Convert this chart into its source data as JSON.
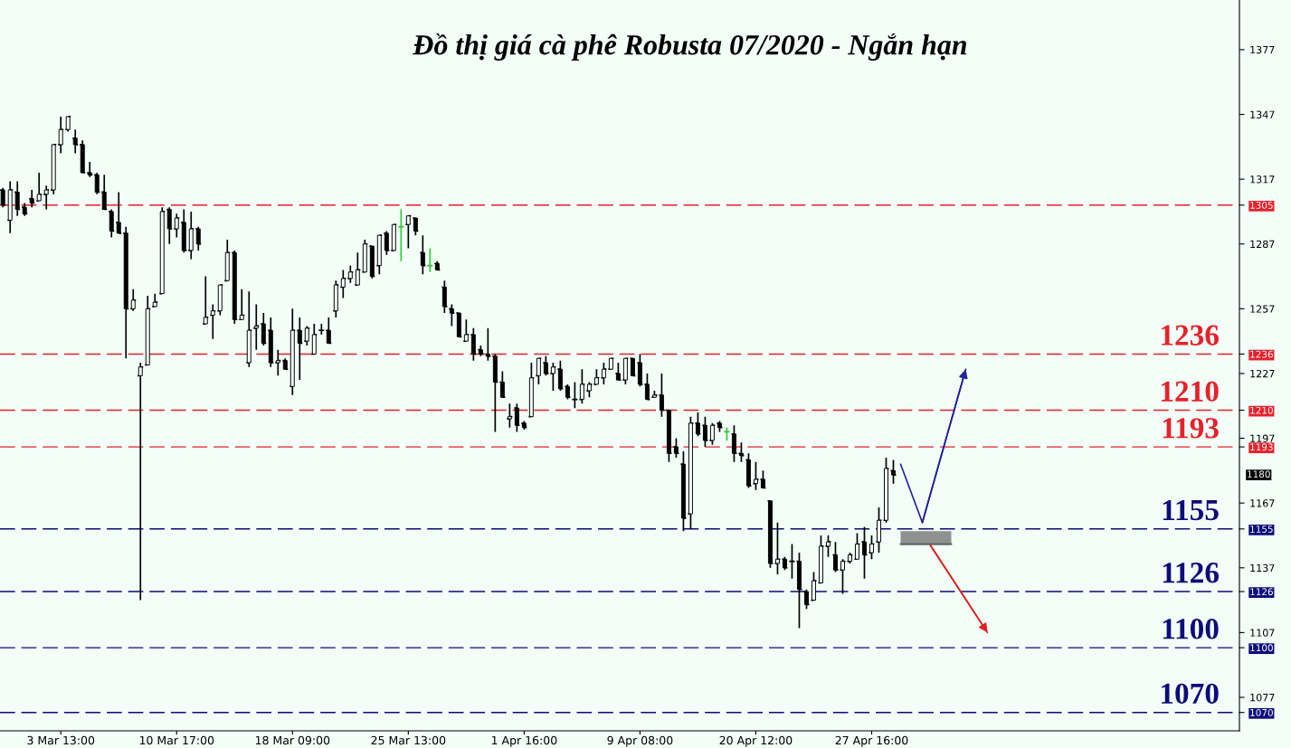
{
  "chart_data": {
    "type": "candlestick",
    "title": "Đồ thị giá cà phê Robusta 07/2020 - Ngắn hạn",
    "categories": [
      null,
      null,
      null,
      null,
      null,
      null,
      null,
      null,
      "3 Mar 13:00",
      null,
      null,
      null,
      null,
      null,
      null,
      null,
      null,
      null,
      null,
      null,
      null,
      null,
      null,
      null,
      "10 Mar 17:00",
      null,
      null,
      null,
      null,
      null,
      null,
      null,
      null,
      null,
      null,
      null,
      null,
      null,
      null,
      null,
      "18 Mar 09:00",
      null,
      null,
      null,
      null,
      null,
      null,
      null,
      null,
      null,
      null,
      null,
      null,
      null,
      null,
      null,
      "25 Mar 13:00",
      null,
      null,
      null,
      null,
      null,
      null,
      null,
      null,
      null,
      null,
      null,
      null,
      null,
      null,
      null,
      "1 Apr 16:00",
      null,
      null,
      null,
      null,
      null,
      null,
      null,
      null,
      null,
      null,
      null,
      null,
      null,
      null,
      null,
      "9 Apr 08:00",
      null,
      null,
      null,
      null,
      null,
      null,
      null,
      null,
      null,
      null,
      null,
      null,
      null,
      null,
      null,
      "20 Apr 12:00",
      null,
      null,
      null,
      null,
      null,
      null,
      null,
      null,
      null,
      null,
      null,
      null,
      null,
      null,
      null,
      "27 Apr 16:00",
      null,
      null,
      null,
      null,
      null,
      null,
      null,
      null,
      null,
      null,
      null,
      null,
      null,
      null,
      null,
      null,
      null,
      null,
      null,
      null,
      null,
      null,
      null,
      null,
      null,
      null,
      null,
      null,
      null,
      null,
      null,
      null,
      null,
      null,
      null,
      null,
      null,
      null,
      null,
      null,
      null,
      null,
      null,
      null,
      null,
      null,
      null,
      null,
      null,
      null
    ],
    "ohlc": [
      [
        1312,
        1313,
        1304,
        1305
      ],
      [
        1298,
        1316,
        1292,
        1312
      ],
      [
        1311,
        1316,
        1300,
        1303
      ],
      [
        1304,
        1306,
        1300,
        1301
      ],
      [
        1308,
        1312,
        1304,
        1306
      ],
      [
        1307,
        1320,
        1307,
        1310
      ],
      [
        1310,
        1314,
        1303,
        1312
      ],
      [
        1312,
        1333,
        1310,
        1333
      ],
      [
        1333,
        1346,
        1329,
        1340
      ],
      [
        1340,
        1346,
        1339,
        1346
      ],
      [
        1336,
        1340,
        1329,
        1333
      ],
      [
        1333,
        1335,
        1320,
        1320
      ],
      [
        1320,
        1325,
        1318,
        1319
      ],
      [
        1319,
        1320,
        1310,
        1311
      ],
      [
        1311,
        1319,
        1303,
        1303
      ],
      [
        1302,
        1303,
        1290,
        1293
      ],
      [
        1297,
        1311,
        1292,
        1292
      ],
      [
        1292,
        1295,
        1234,
        1257
      ],
      [
        1257,
        1266,
        1256,
        1261
      ],
      [
        1226,
        1232,
        1122,
        1230
      ],
      [
        1231,
        1263,
        1231,
        1257
      ],
      [
        1258,
        1264,
        1258,
        1260
      ],
      [
        1264,
        1304,
        1264,
        1302
      ],
      [
        1303,
        1304,
        1287,
        1294
      ],
      [
        1294,
        1301,
        1290,
        1299
      ],
      [
        1297,
        1303,
        1283,
        1284
      ],
      [
        1284,
        1302,
        1280,
        1294
      ],
      [
        1294,
        1295,
        1284,
        1287
      ],
      [
        1250,
        1272,
        1250,
        1253
      ],
      [
        1254,
        1259,
        1243,
        1256
      ],
      [
        1256,
        1268,
        1254,
        1268
      ],
      [
        1270,
        1289,
        1270,
        1283
      ],
      [
        1283,
        1284,
        1250,
        1252
      ],
      [
        1252,
        1266,
        1252,
        1254
      ],
      [
        1232,
        1265,
        1230,
        1247
      ],
      [
        1248,
        1259,
        1238,
        1249
      ],
      [
        1250,
        1255,
        1240,
        1241
      ],
      [
        1247,
        1253,
        1230,
        1232
      ],
      [
        1232,
        1238,
        1226,
        1233
      ],
      [
        1233,
        1234,
        1229,
        1229
      ],
      [
        1221,
        1257,
        1217,
        1247
      ],
      [
        1247,
        1253,
        1224,
        1241
      ],
      [
        1242,
        1249,
        1240,
        1248
      ],
      [
        1236,
        1250,
        1236,
        1245
      ],
      [
        1247,
        1250,
        1245,
        1247
      ],
      [
        1247,
        1253,
        1241,
        1241
      ],
      [
        1256,
        1270,
        1253,
        1268
      ],
      [
        1267,
        1275,
        1262,
        1271
      ],
      [
        1271,
        1277,
        1269,
        1274
      ],
      [
        1268,
        1283,
        1268,
        1275
      ],
      [
        1274,
        1289,
        1274,
        1287
      ],
      [
        1286,
        1286,
        1271,
        1272
      ],
      [
        1277,
        1291,
        1273,
        1291
      ],
      [
        1292,
        1293,
        1282,
        1284
      ],
      [
        1284,
        1296,
        1284,
        1296
      ],
      [
        1295,
        1303,
        1279,
        1295
      ],
      [
        1296,
        1300,
        1285,
        1300
      ],
      [
        1299,
        1299,
        1291,
        1293
      ],
      [
        1283,
        1291,
        1273,
        1277
      ],
      [
        1277,
        1285,
        1274,
        1277
      ],
      [
        1278,
        1279,
        1275,
        1275
      ],
      [
        1267,
        1270,
        1255,
        1258
      ],
      [
        1257,
        1259,
        1249,
        1255
      ],
      [
        1255,
        1255,
        1244,
        1244
      ],
      [
        1242,
        1252,
        1242,
        1245
      ],
      [
        1245,
        1248,
        1233,
        1236
      ],
      [
        1238,
        1240,
        1235,
        1236
      ],
      [
        1236,
        1248,
        1233,
        1235
      ],
      [
        1235,
        1236,
        1200,
        1223
      ],
      [
        1223,
        1228,
        1216,
        1216
      ],
      [
        1206,
        1213,
        1202,
        1207
      ],
      [
        1211,
        1213,
        1200,
        1203
      ],
      [
        1204,
        1205,
        1201,
        1202
      ],
      [
        1207,
        1232,
        1207,
        1225
      ],
      [
        1226,
        1234,
        1222,
        1234
      ],
      [
        1232,
        1235,
        1226,
        1227
      ],
      [
        1227,
        1232,
        1219,
        1230
      ],
      [
        1229,
        1233,
        1219,
        1220
      ],
      [
        1221,
        1222,
        1215,
        1216
      ],
      [
        1215,
        1223,
        1211,
        1215
      ],
      [
        1215,
        1229,
        1213,
        1222
      ],
      [
        1219,
        1223,
        1216,
        1222
      ],
      [
        1222,
        1229,
        1222,
        1225
      ],
      [
        1225,
        1232,
        1222,
        1229
      ],
      [
        1229,
        1234,
        1229,
        1234
      ],
      [
        1227,
        1232,
        1224,
        1224
      ],
      [
        1224,
        1234,
        1222,
        1234
      ],
      [
        1234,
        1234,
        1226,
        1226
      ],
      [
        1232,
        1236,
        1221,
        1222
      ],
      [
        1222,
        1227,
        1215,
        1215
      ],
      [
        1216,
        1219,
        1216,
        1217
      ],
      [
        1217,
        1227,
        1207,
        1210
      ],
      [
        1210,
        1210,
        1186,
        1190
      ],
      [
        1193,
        1197,
        1188,
        1190
      ],
      [
        1185,
        1191,
        1154,
        1160
      ],
      [
        1162,
        1207,
        1155,
        1204
      ],
      [
        1204,
        1209,
        1198,
        1199
      ],
      [
        1203,
        1207,
        1193,
        1196
      ],
      [
        1196,
        1204,
        1194,
        1203
      ],
      [
        1204,
        1205,
        1200,
        1202
      ],
      [
        1200,
        1202,
        1196,
        1200
      ],
      [
        1199,
        1203,
        1186,
        1190
      ],
      [
        1190,
        1195,
        1186,
        1189
      ],
      [
        1187,
        1190,
        1174,
        1175
      ],
      [
        1176,
        1186,
        1173,
        1178
      ],
      [
        1178,
        1182,
        1174,
        1174
      ],
      [
        1168,
        1168,
        1137,
        1139
      ],
      [
        1139,
        1158,
        1134,
        1141
      ],
      [
        1141,
        1142,
        1136,
        1137
      ],
      [
        1140,
        1148,
        1132,
        1140
      ],
      [
        1140,
        1144,
        1109,
        1127
      ],
      [
        1126,
        1127,
        1118,
        1120
      ],
      [
        1122,
        1135,
        1122,
        1131
      ],
      [
        1130,
        1152,
        1130,
        1147
      ],
      [
        1147,
        1152,
        1142,
        1149
      ],
      [
        1143,
        1149,
        1135,
        1136
      ],
      [
        1136,
        1141,
        1125,
        1140
      ],
      [
        1140,
        1144,
        1139,
        1143
      ],
      [
        1141,
        1153,
        1141,
        1148
      ],
      [
        1149,
        1156,
        1132,
        1143
      ],
      [
        1144,
        1152,
        1141,
        1148
      ],
      [
        1149,
        1165,
        1144,
        1159
      ],
      [
        1159,
        1188,
        1158,
        1183
      ],
      [
        1182,
        1187,
        1176,
        1180
      ],
      null,
      null,
      null,
      null,
      null,
      null,
      null,
      null,
      null,
      null,
      null,
      null,
      null,
      null,
      null,
      null,
      null,
      null,
      null,
      null,
      null,
      null,
      null,
      null,
      null,
      null,
      null,
      null,
      null,
      null,
      null,
      null,
      null,
      null,
      null,
      null,
      null,
      null,
      null,
      null,
      null,
      null,
      null,
      null,
      null,
      null,
      null
    ],
    "colors": [
      "#000000",
      "#000000",
      "#000000",
      "#000000",
      "#000000",
      "#000000",
      "#000000",
      "#000000",
      "#000000",
      "#000000",
      "#000000",
      "#000000",
      "#000000",
      "#000000",
      "#000000",
      "#000000",
      "#000000",
      "#000000",
      "#000000",
      "#000000",
      "#000000",
      "#000000",
      "#000000",
      "#000000",
      "#000000",
      "#000000",
      "#000000",
      "#000000",
      "#000000",
      "#000000",
      "#000000",
      "#000000",
      "#000000",
      "#000000",
      "#000000",
      "#000000",
      "#000000",
      "#000000",
      "#000000",
      "#000000",
      "#000000",
      "#000000",
      "#000000",
      "#000000",
      "#000000",
      "#000000",
      "#000000",
      "#000000",
      "#000000",
      "#000000",
      "#000000",
      "#000000",
      "#000000",
      "#000000",
      "#000000",
      "#32cd32",
      "#000000",
      "#000000",
      "#000000",
      "#32cd32",
      "#000000",
      "#000000",
      "#000000",
      "#000000",
      "#000000",
      "#000000",
      "#000000",
      "#000000",
      "#000000",
      "#000000",
      "#000000",
      "#000000",
      "#000000",
      "#000000",
      "#000000",
      "#000000",
      "#000000",
      "#000000",
      "#000000",
      "#000000",
      "#000000",
      "#000000",
      "#000000",
      "#000000",
      "#000000",
      "#000000",
      "#000000",
      "#000000",
      "#000000",
      "#000000",
      "#000000",
      "#000000",
      "#000000",
      "#000000",
      "#000000",
      "#000000",
      "#000000",
      "#000000",
      "#000000",
      "#000000",
      "#32cd32",
      "#000000",
      "#000000",
      "#000000",
      "#000000",
      "#000000",
      "#000000",
      "#000000",
      "#000000",
      "#000000",
      "#000000",
      "#000000",
      "#000000",
      "#000000",
      "#000000",
      "#000000",
      "#000000",
      "#000000",
      "#000000",
      "#000000",
      "#000000",
      "#000000",
      "#000000",
      "#000000",
      null,
      null,
      null,
      null,
      null,
      null,
      null,
      null,
      null,
      null,
      null,
      null,
      null,
      null,
      null,
      null,
      null,
      null,
      null,
      null,
      null,
      null,
      null,
      null,
      null,
      null,
      null,
      null,
      null,
      null,
      null,
      null,
      null,
      null,
      null,
      null,
      null,
      null,
      null,
      null,
      null,
      null,
      null,
      null,
      null,
      null,
      null
    ],
    "series": [
      {
        "type": "line",
        "color": "#22229a",
        "values": [
          null,
          null,
          null,
          null,
          null,
          null,
          null,
          null,
          null,
          null,
          null,
          null,
          null,
          null,
          null,
          null,
          null,
          null,
          null,
          null,
          null,
          null,
          null,
          null,
          null,
          null,
          null,
          null,
          null,
          null,
          null,
          null,
          null,
          null,
          null,
          null,
          null,
          null,
          null,
          null,
          null,
          null,
          null,
          null,
          null,
          null,
          null,
          null,
          null,
          null,
          null,
          null,
          null,
          null,
          null,
          null,
          null,
          null,
          null,
          null,
          null,
          null,
          null,
          null,
          null,
          null,
          null,
          null,
          null,
          null,
          null,
          null,
          null,
          null,
          null,
          null,
          null,
          null,
          null,
          null,
          null,
          null,
          null,
          null,
          null,
          null,
          null,
          null,
          null,
          null,
          null,
          null,
          null,
          null,
          null,
          null,
          null,
          null,
          null,
          null,
          null,
          null,
          null,
          null,
          null,
          null,
          null,
          null,
          null,
          null,
          null,
          null,
          null,
          null,
          null,
          null,
          null,
          null,
          null,
          null,
          null,
          null,
          null,
          null,
          1185,
          null,
          null,
          1158,
          null,
          null,
          null,
          null,
          null,
          1229,
          null,
          null,
          null,
          null,
          null,
          null,
          null,
          null,
          null,
          null,
          null,
          null,
          null,
          null,
          null,
          null,
          null,
          null,
          null,
          null,
          null,
          null,
          null,
          null,
          null,
          null,
          null,
          null,
          null,
          null,
          null,
          null,
          null,
          null,
          null,
          null,
          null
        ]
      },
      {
        "type": "line",
        "color": "#e02020",
        "values": [
          null,
          null,
          null,
          null,
          null,
          null,
          null,
          null,
          null,
          null,
          null,
          null,
          null,
          null,
          null,
          null,
          null,
          null,
          null,
          null,
          null,
          null,
          null,
          null,
          null,
          null,
          null,
          null,
          null,
          null,
          null,
          null,
          null,
          null,
          null,
          null,
          null,
          null,
          null,
          null,
          null,
          null,
          null,
          null,
          null,
          null,
          null,
          null,
          null,
          null,
          null,
          null,
          null,
          null,
          null,
          null,
          null,
          null,
          null,
          null,
          null,
          null,
          null,
          null,
          null,
          null,
          null,
          null,
          null,
          null,
          null,
          null,
          null,
          null,
          null,
          null,
          null,
          null,
          null,
          null,
          null,
          null,
          null,
          null,
          null,
          null,
          null,
          null,
          null,
          null,
          null,
          null,
          null,
          null,
          null,
          null,
          null,
          null,
          null,
          null,
          null,
          null,
          null,
          null,
          null,
          null,
          null,
          null,
          null,
          null,
          null,
          null,
          null,
          null,
          null,
          null,
          null,
          null,
          null,
          null,
          null,
          null,
          null,
          null,
          null,
          null,
          null,
          null,
          1148,
          null,
          null,
          null,
          null,
          null,
          null,
          null,
          1107,
          null,
          null,
          null,
          null,
          null,
          null,
          null,
          null,
          null,
          null,
          null,
          null,
          null,
          null,
          null,
          null,
          null,
          null,
          null,
          null,
          null,
          null,
          null,
          null,
          null,
          null,
          null,
          null,
          null,
          null,
          null,
          null,
          null,
          null
        ]
      },
      {
        "type": "line",
        "color": "#666666",
        "values": [
          null,
          null,
          null,
          null,
          null,
          null,
          null,
          null,
          null,
          null,
          null,
          null,
          null,
          null,
          null,
          null,
          null,
          null,
          null,
          null,
          null,
          null,
          null,
          null,
          null,
          null,
          null,
          null,
          null,
          null,
          null,
          null,
          null,
          null,
          null,
          null,
          null,
          null,
          null,
          null,
          null,
          null,
          null,
          null,
          null,
          null,
          null,
          null,
          null,
          null,
          null,
          null,
          null,
          null,
          null,
          null,
          null,
          null,
          null,
          null,
          null,
          null,
          null,
          null,
          null,
          null,
          null,
          null,
          null,
          null,
          null,
          null,
          null,
          null,
          null,
          null,
          null,
          null,
          null,
          null,
          null,
          null,
          null,
          null,
          null,
          null,
          null,
          null,
          null,
          null,
          null,
          null,
          null,
          null,
          null,
          null,
          null,
          null,
          null,
          null,
          null,
          null,
          null,
          null,
          null,
          null,
          null,
          null,
          null,
          null,
          null,
          null,
          null,
          null,
          null,
          null,
          null,
          null,
          null,
          null,
          null,
          null,
          null,
          null,
          1148,
          1148,
          1148,
          1148,
          1148,
          1148,
          1148,
          1148,
          null,
          null,
          null,
          null,
          null,
          null,
          null,
          null,
          null,
          null,
          null,
          null,
          null,
          null,
          null,
          null,
          null,
          null,
          null,
          null,
          null,
          null,
          null,
          null,
          null,
          null,
          null,
          null,
          null,
          null,
          null,
          null,
          null,
          null,
          null,
          null,
          null,
          null,
          null
        ],
        "lower": [
          null,
          null,
          null,
          null,
          null,
          null,
          null,
          null,
          null,
          null,
          null,
          null,
          null,
          null,
          null,
          null,
          null,
          null,
          null,
          null,
          null,
          null,
          null,
          null,
          null,
          null,
          null,
          null,
          null,
          null,
          null,
          null,
          null,
          null,
          null,
          null,
          null,
          null,
          null,
          null,
          null,
          null,
          null,
          null,
          null,
          null,
          null,
          null,
          null,
          null,
          null,
          null,
          null,
          null,
          null,
          null,
          null,
          null,
          null,
          null,
          null,
          null,
          null,
          null,
          null,
          null,
          null,
          null,
          null,
          null,
          null,
          null,
          null,
          null,
          null,
          null,
          null,
          null,
          null,
          null,
          null,
          null,
          null,
          null,
          null,
          null,
          null,
          null,
          null,
          null,
          null,
          null,
          null,
          null,
          null,
          null,
          null,
          null,
          null,
          null,
          null,
          null,
          null,
          null,
          null,
          null,
          null,
          null,
          null,
          null,
          null,
          null,
          null,
          null,
          null,
          null,
          null,
          null,
          null,
          null,
          null,
          null,
          null,
          null,
          1148,
          1148,
          1148,
          1148,
          1148,
          1148,
          1148,
          1148,
          null,
          null,
          null,
          null,
          null,
          null,
          null,
          null,
          null,
          null,
          null,
          null,
          null,
          null,
          null,
          null,
          null,
          null,
          null,
          null,
          null,
          null,
          null,
          null,
          null,
          null,
          null,
          null,
          null,
          null,
          null,
          null,
          null,
          null,
          null,
          null,
          null,
          null,
          null
        ],
        "upper": [
          null,
          null,
          null,
          null,
          null,
          null,
          null,
          null,
          null,
          null,
          null,
          null,
          null,
          null,
          null,
          null,
          null,
          null,
          null,
          null,
          null,
          null,
          null,
          null,
          null,
          null,
          null,
          null,
          null,
          null,
          null,
          null,
          null,
          null,
          null,
          null,
          null,
          null,
          null,
          null,
          null,
          null,
          null,
          null,
          null,
          null,
          null,
          null,
          null,
          null,
          null,
          null,
          null,
          null,
          null,
          null,
          null,
          null,
          null,
          null,
          null,
          null,
          null,
          null,
          null,
          null,
          null,
          null,
          null,
          null,
          null,
          null,
          null,
          null,
          null,
          null,
          null,
          null,
          null,
          null,
          null,
          null,
          null,
          null,
          null,
          null,
          null,
          null,
          null,
          null,
          null,
          null,
          null,
          null,
          null,
          null,
          null,
          null,
          null,
          null,
          null,
          null,
          null,
          null,
          null,
          null,
          null,
          null,
          null,
          null,
          null,
          null,
          null,
          null,
          null,
          null,
          null,
          null,
          null,
          null,
          null,
          null,
          null,
          null,
          1154,
          1154,
          1154,
          1154,
          1154,
          1154,
          1154,
          1154,
          null,
          null,
          null,
          null,
          null,
          null,
          null,
          null,
          null,
          null,
          null,
          null,
          null,
          null,
          null,
          null,
          null,
          null,
          null,
          null,
          null,
          null,
          null,
          null,
          null,
          null,
          null,
          null,
          null,
          null,
          null,
          null,
          null,
          null,
          null,
          null,
          null,
          null,
          null
        ]
      }
    ],
    "ylim": [
      1061.5,
      1400
    ],
    "yticks": [
      1070,
      1077,
      1100,
      1107,
      1126,
      1137,
      1155,
      1167,
      1193,
      1197,
      1210,
      1227,
      1236,
      1257,
      1287,
      1305,
      1317,
      1347,
      1377
    ],
    "ref_lines": [
      {
        "axis": "y",
        "value": 1305,
        "color": "#e8202a",
        "line_style": "dashed"
      },
      {
        "axis": "y",
        "value": 1236,
        "label": "1236",
        "color": "#e8202a",
        "line_style": "dashed"
      },
      {
        "axis": "y",
        "value": 1210,
        "label": "1210",
        "color": "#e8202a",
        "line_style": "dashed"
      },
      {
        "axis": "y",
        "value": 1193,
        "label": "1193",
        "color": "#e8202a",
        "line_style": "dashed"
      },
      {
        "axis": "y",
        "value": 1155,
        "label": "1155",
        "color": "#0c0c7a",
        "line_style": "dashed"
      },
      {
        "axis": "y",
        "value": 1126,
        "label": "1126",
        "color": "#0c0c7a",
        "line_style": "dashed"
      },
      {
        "axis": "y",
        "value": 1100,
        "label": "1100",
        "color": "#0c0c7a",
        "line_style": "dashed"
      },
      {
        "axis": "y",
        "value": 1070,
        "label": "1070",
        "color": "#0c0c7a",
        "line_style": "dashed"
      }
    ],
    "annotations": [
      "1180"
    ]
  }
}
